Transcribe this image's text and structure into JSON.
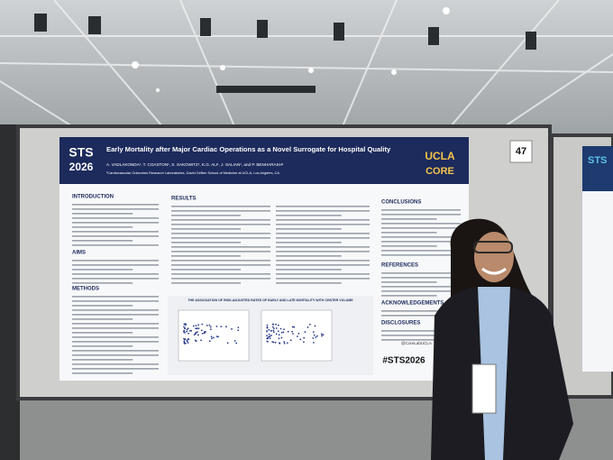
{
  "booth_number": "47",
  "poster": {
    "logo": {
      "line1": "STS",
      "line2": "2026"
    },
    "title": "Early Mortality after Major Cardiac Operations as a Novel Surrogate for Hospital Quality",
    "authors": "A. VADLAKONDA¹, T. COASTON¹, S. SAKOWITZ¹, K.G. ALI¹, J. SALIAN¹, and P. BENHARASH¹",
    "affiliation": "¹Cardiovascular Outcomes Research Laboratories, David Geffen School of Medicine at UCLA, Los Angeles, CA",
    "institution_logo": {
      "line1": "UCLA",
      "line2": "CORE"
    },
    "sections": {
      "introduction": "INTRODUCTION",
      "aims": "AIMS",
      "methods": "METHODS",
      "results": "RESULTS",
      "conclusions": "CONCLUSIONS",
      "references": "REFERENCES",
      "acknowledgements": "ACKNOWLEDGEMENTS",
      "disclosures": "DISCLOSURES"
    },
    "figure_title": "THE ASSOCIATION OF RISK-ADJUSTED RATES OF EARLY AND LATE MORTALITY WITH CENTER VOLUME",
    "handle": "@CoreLabUCLA",
    "hashtag": "#STS2026"
  }
}
